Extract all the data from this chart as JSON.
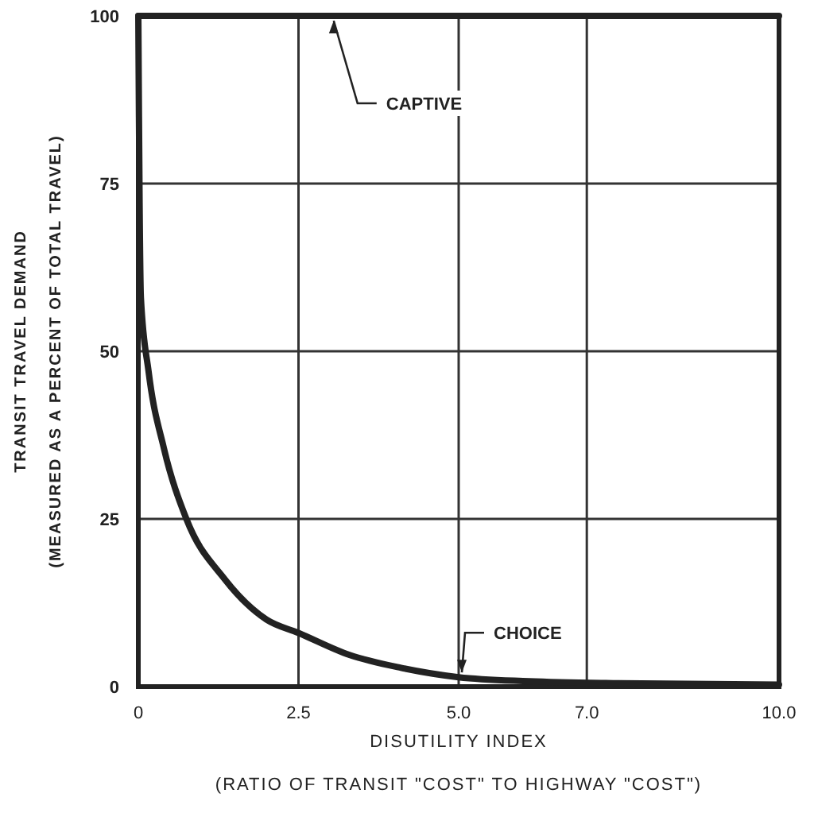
{
  "chart_data": {
    "type": "line",
    "xlabel": "DISUTILITY INDEX\n(RATIO OF TRANSIT \"COST\" TO HIGHWAY \"COST\")",
    "ylabel": "TRANSIT TRAVEL DEMAND\n(MEASURED AS A PERCENT OF TOTAL TRAVEL)",
    "xlim": [
      0,
      10
    ],
    "xticks": [
      0,
      2.5,
      {
        "value": 5,
        "label": "5.0"
      },
      {
        "value": 7,
        "label": "7.0"
      },
      {
        "value": 10,
        "label": "10.0"
      }
    ],
    "ylim": [
      0,
      100
    ],
    "yticks": [
      0,
      25,
      50,
      75,
      100
    ],
    "grid": true,
    "line_style": "solid",
    "series": [
      {
        "name": "CAPTIVE",
        "color": "#222222",
        "x": [
          0,
          10
        ],
        "values": [
          100,
          100
        ]
      },
      {
        "name": "CHOICE",
        "color": "#222222",
        "x": [
          0,
          0.01,
          0.02,
          0.04,
          0.16,
          0.4,
          0.75,
          1.35,
          2,
          2.5,
          3.3,
          4.1,
          5,
          6.1,
          7.5,
          10
        ],
        "values": [
          100,
          85,
          72,
          58,
          47,
          35.5,
          25,
          16,
          10,
          8,
          4.7,
          2.8,
          1.4,
          0.8,
          0.5,
          0.3
        ]
      }
    ]
  }
}
